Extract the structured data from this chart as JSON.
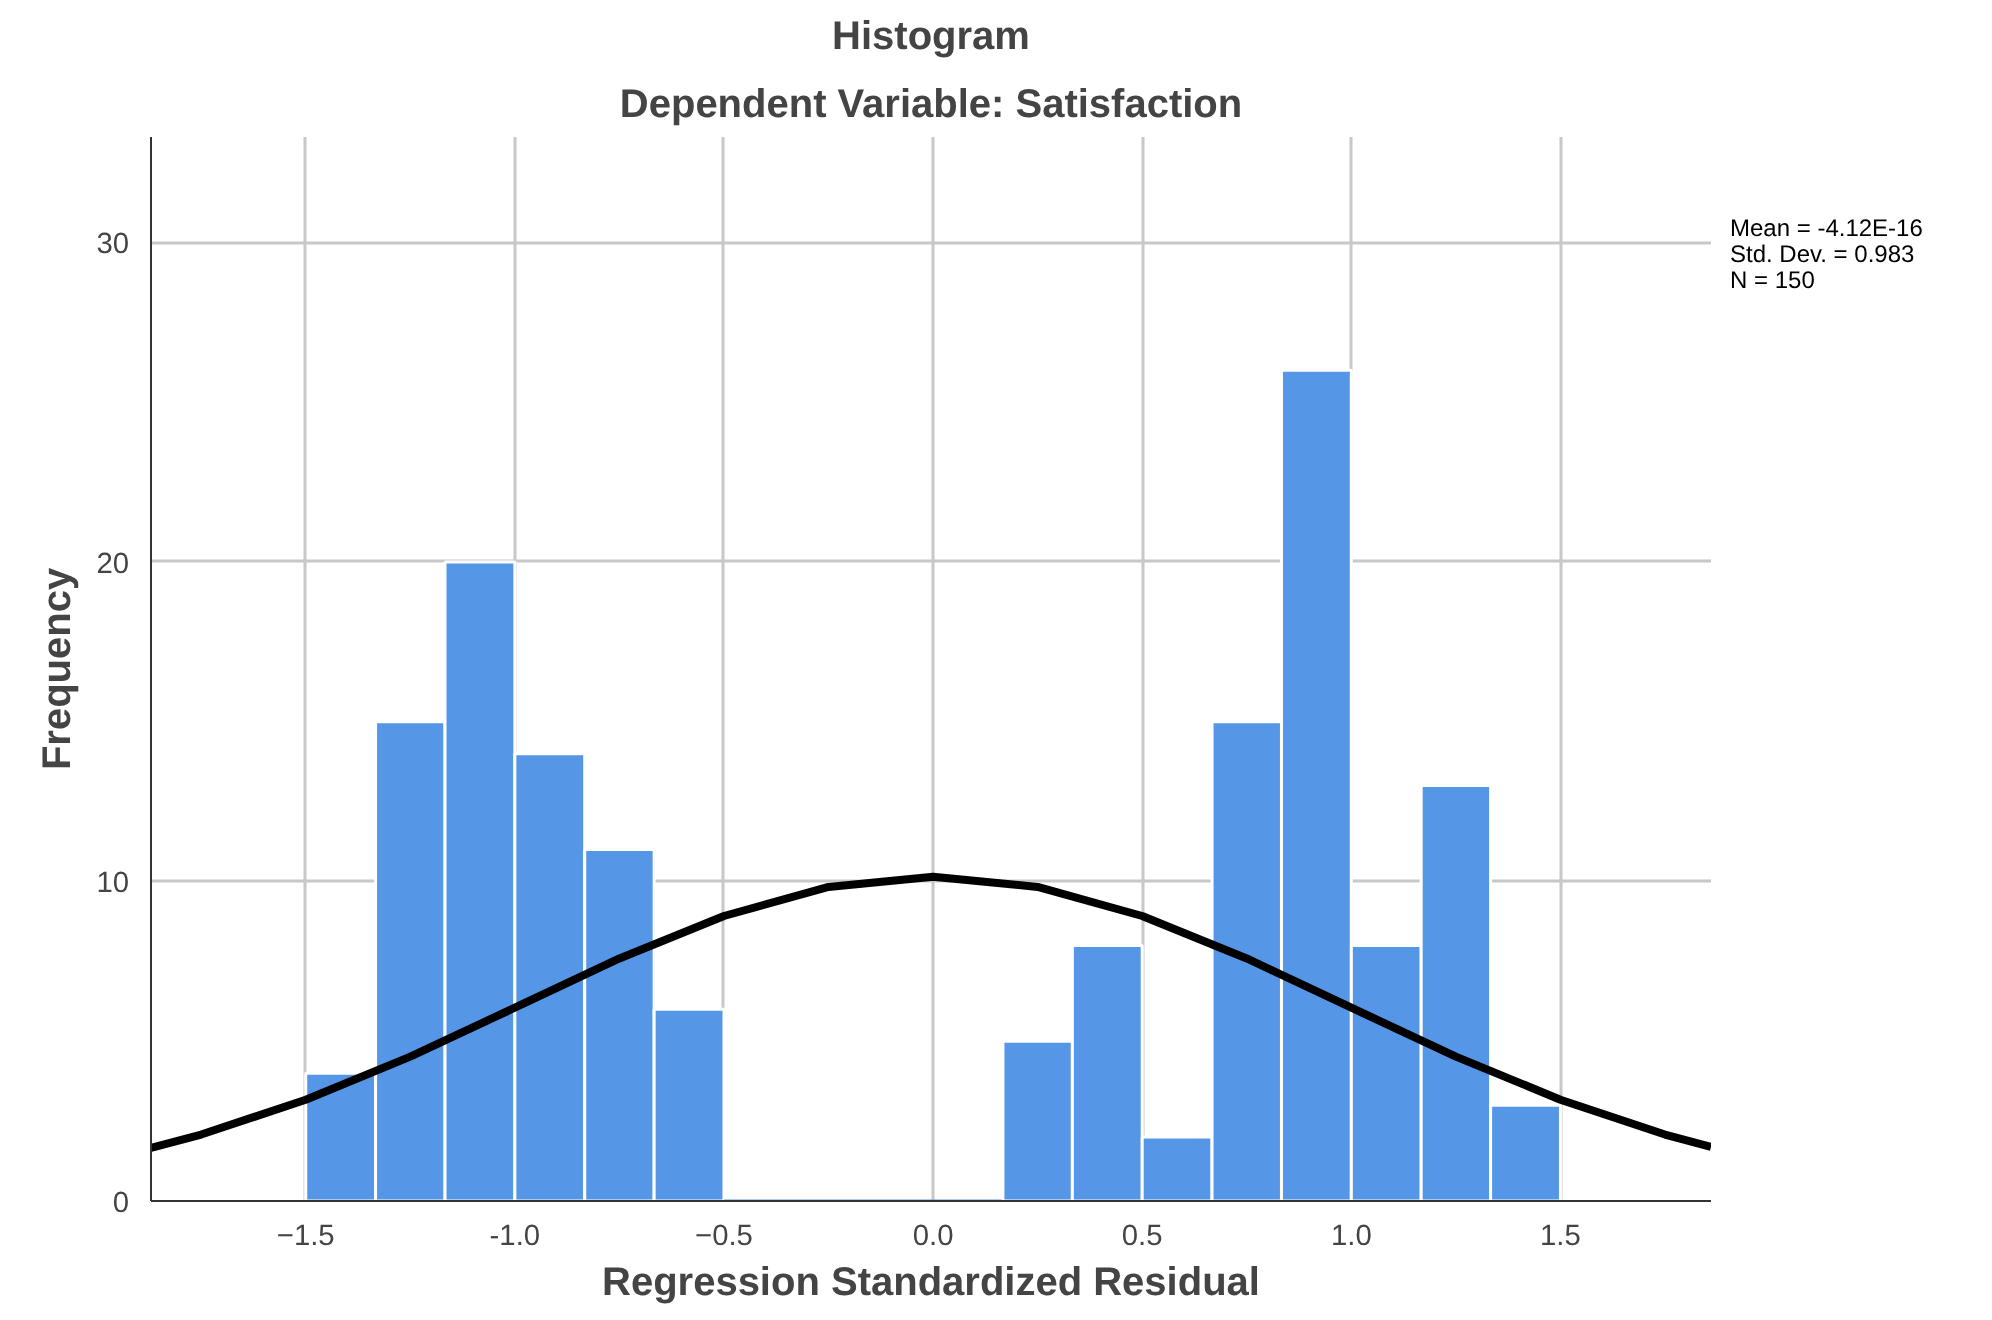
{
  "chart_data": {
    "type": "histogram",
    "title": "Histogram",
    "subtitle": "Dependent Variable: Satisfaction",
    "xlabel": "Regression Standardized Residual",
    "ylabel": "Frequency",
    "bins": [
      -1.5,
      -1.333,
      -1.167,
      -1.0,
      -0.833,
      -0.667,
      -0.5,
      -0.333,
      -0.167,
      0.0,
      0.167,
      0.333,
      0.5,
      0.667,
      0.833,
      1.0,
      1.167,
      1.333,
      1.5
    ],
    "values": [
      4,
      15,
      20,
      14,
      11,
      6,
      0,
      0,
      0,
      0,
      5,
      8,
      2,
      15,
      26,
      8,
      13,
      3
    ],
    "color": "#5596e6",
    "series": [
      {
        "type": "line",
        "color": "#000000",
        "x": [
          -1.87,
          -1.75,
          -1.5,
          -1.25,
          -1.0,
          -0.75,
          -0.5,
          -0.25,
          0.0,
          0.25,
          0.5,
          0.75,
          1.0,
          1.25,
          1.5,
          1.75,
          1.86
        ],
        "values": [
          1.66,
          2.08,
          3.17,
          4.52,
          6.05,
          7.59,
          8.92,
          9.83,
          10.15,
          9.83,
          8.92,
          7.59,
          6.05,
          4.52,
          3.17,
          2.08,
          1.69
        ]
      }
    ],
    "xlim": [
      -1.87,
      1.86
    ],
    "ylim": [
      0,
      33.3
    ],
    "xticks": [
      -1.5,
      {
        "value": -1.0,
        "label": "-1.0"
      },
      -0.5,
      {
        "value": 0.0,
        "label": "0.0"
      },
      0.5,
      {
        "value": 1.0,
        "label": "1.0"
      },
      1.5
    ],
    "yticks": [
      0,
      10,
      20,
      30
    ],
    "grid": true,
    "annotations": [
      "Mean = -4.12E-16",
      "Std. Dev. = 0.983",
      "N = 150"
    ]
  }
}
